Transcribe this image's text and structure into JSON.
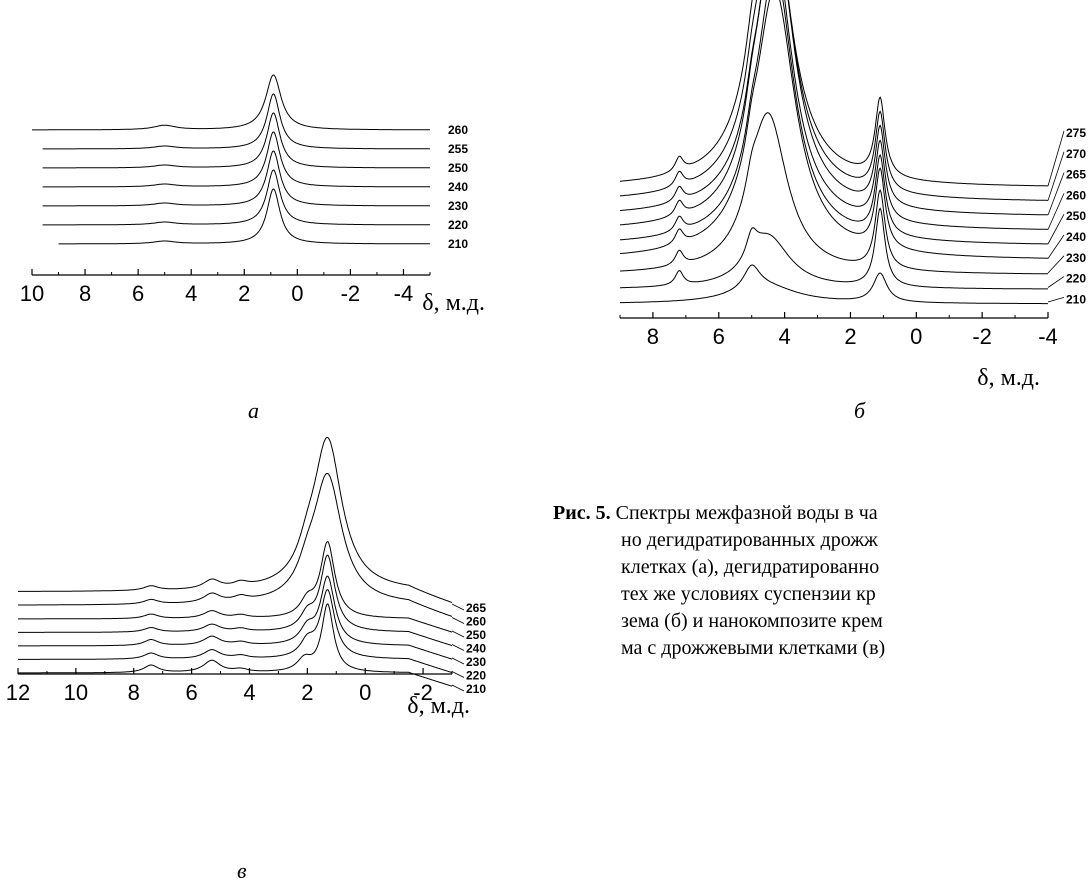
{
  "chart_data": [
    {
      "panel": "a",
      "type": "line",
      "panel_label": "а",
      "xlabel": "δ, м.д.",
      "xlim": [
        10,
        -5
      ],
      "xticks": [
        10,
        8,
        6,
        4,
        2,
        0,
        -2,
        -4
      ],
      "series": [
        {
          "name": "260",
          "peak": 0.9,
          "height": 1.0,
          "width": 0.35,
          "x_start": 10,
          "extras": [
            [
              5,
              0.08,
              0.5
            ]
          ]
        },
        {
          "name": "255",
          "peak": 0.9,
          "height": 1.0,
          "width": 0.3,
          "x_start": 9.6,
          "extras": [
            [
              5,
              0.05,
              0.5
            ]
          ]
        },
        {
          "name": "250",
          "peak": 0.9,
          "height": 1.0,
          "width": 0.3,
          "x_start": 9.6,
          "extras": [
            [
              5,
              0.05,
              0.5
            ]
          ]
        },
        {
          "name": "240",
          "peak": 0.9,
          "height": 1.0,
          "width": 0.3,
          "x_start": 9.6,
          "extras": [
            [
              5,
              0.05,
              0.5
            ]
          ]
        },
        {
          "name": "230",
          "peak": 0.9,
          "height": 1.0,
          "width": 0.3,
          "x_start": 9.6,
          "extras": [
            [
              5,
              0.05,
              0.5
            ]
          ]
        },
        {
          "name": "220",
          "peak": 0.9,
          "height": 1.0,
          "width": 0.3,
          "x_start": 9.6,
          "extras": [
            [
              5,
              0.05,
              0.5
            ]
          ]
        },
        {
          "name": "210",
          "peak": 0.9,
          "height": 1.0,
          "width": 0.3,
          "x_start": 9.0,
          "extras": [
            [
              5,
              0.05,
              0.5
            ]
          ]
        }
      ]
    },
    {
      "panel": "b",
      "type": "line",
      "panel_label": "б",
      "xlabel": "δ, м.д.",
      "xlim": [
        9,
        -4
      ],
      "xticks": [
        8,
        6,
        4,
        2,
        0,
        -2,
        -4
      ],
      "series": [
        {
          "name": "275",
          "peak": 4.4,
          "height": 1.0,
          "width": 0.7,
          "x_start": 9,
          "extras": [
            [
              7.2,
              0.05,
              0.15
            ],
            [
              5.0,
              0.06,
              0.2
            ],
            [
              1.1,
              0.27,
              0.18
            ]
          ]
        },
        {
          "name": "270",
          "peak": 4.35,
          "height": 1.0,
          "width": 0.7,
          "x_start": 9,
          "extras": [
            [
              7.2,
              0.05,
              0.15
            ],
            [
              5.0,
              0.06,
              0.2
            ],
            [
              1.1,
              0.27,
              0.18
            ]
          ]
        },
        {
          "name": "265",
          "peak": 4.3,
          "height": 1.0,
          "width": 0.7,
          "x_start": 9,
          "extras": [
            [
              7.2,
              0.05,
              0.15
            ],
            [
              5.0,
              0.06,
              0.2
            ],
            [
              1.1,
              0.27,
              0.18
            ]
          ]
        },
        {
          "name": "260",
          "peak": 4.35,
          "height": 1.0,
          "width": 0.7,
          "x_start": 9,
          "extras": [
            [
              7.2,
              0.05,
              0.15
            ],
            [
              5.0,
              0.06,
              0.2
            ],
            [
              1.1,
              0.27,
              0.18
            ]
          ]
        },
        {
          "name": "250",
          "peak": 4.3,
          "height": 0.95,
          "width": 0.7,
          "x_start": 9,
          "extras": [
            [
              7.2,
              0.05,
              0.15
            ],
            [
              5.0,
              0.06,
              0.2
            ],
            [
              1.1,
              0.27,
              0.18
            ]
          ]
        },
        {
          "name": "240",
          "peak": 4.3,
          "height": 0.93,
          "width": 0.75,
          "x_start": 9,
          "extras": [
            [
              7.2,
              0.05,
              0.15
            ],
            [
              5.0,
              0.06,
              0.2
            ],
            [
              1.1,
              0.27,
              0.18
            ]
          ]
        },
        {
          "name": "230",
          "peak": 4.5,
          "height": 0.55,
          "width": 0.7,
          "x_start": 9,
          "extras": [
            [
              7.2,
              0.05,
              0.15
            ],
            [
              5.0,
              0.06,
              0.2
            ],
            [
              1.1,
              0.27,
              0.18
            ]
          ]
        },
        {
          "name": "220",
          "peak": 4.5,
          "height": 0.18,
          "width": 0.8,
          "x_start": 9,
          "extras": [
            [
              7.2,
              0.05,
              0.15
            ],
            [
              5.0,
              0.08,
              0.2
            ],
            [
              1.1,
              0.27,
              0.18
            ]
          ]
        },
        {
          "name": "210",
          "peak": 4.6,
          "height": 0.06,
          "width": 1.2,
          "x_start": 9,
          "extras": [
            [
              5.0,
              0.08,
              0.3
            ],
            [
              1.1,
              0.1,
              0.25
            ]
          ]
        }
      ]
    },
    {
      "panel": "v",
      "type": "line",
      "panel_label": "в",
      "xlabel": "δ, м.д.",
      "xlim": [
        12,
        -3
      ],
      "xticks": [
        12,
        10,
        8,
        6,
        4,
        2,
        0,
        -2
      ],
      "series": [
        {
          "name": "265",
          "peak": 1.3,
          "height": 1.0,
          "width": 0.6,
          "x_start": 12,
          "extras": [
            [
              7.4,
              0.03,
              0.3
            ],
            [
              5.3,
              0.06,
              0.35
            ],
            [
              4.3,
              0.03,
              0.3
            ],
            [
              2.0,
              0.12,
              0.4
            ]
          ]
        },
        {
          "name": "260",
          "peak": 1.3,
          "height": 0.85,
          "width": 0.6,
          "x_start": 12,
          "extras": [
            [
              7.4,
              0.03,
              0.3
            ],
            [
              5.3,
              0.06,
              0.35
            ],
            [
              4.3,
              0.03,
              0.3
            ],
            [
              2.0,
              0.12,
              0.4
            ]
          ]
        },
        {
          "name": "250",
          "peak": 1.3,
          "height": 0.5,
          "width": 0.3,
          "x_start": 12,
          "extras": [
            [
              7.4,
              0.03,
              0.3
            ],
            [
              5.3,
              0.05,
              0.35
            ],
            [
              4.3,
              0.02,
              0.3
            ],
            [
              2.0,
              0.1,
              0.3
            ]
          ]
        },
        {
          "name": "240",
          "peak": 1.3,
          "height": 0.5,
          "width": 0.3,
          "x_start": 12,
          "extras": [
            [
              7.4,
              0.03,
              0.3
            ],
            [
              5.3,
              0.05,
              0.35
            ],
            [
              4.3,
              0.02,
              0.3
            ],
            [
              2.0,
              0.1,
              0.3
            ]
          ]
        },
        {
          "name": "230",
          "peak": 1.3,
          "height": 0.45,
          "width": 0.3,
          "x_start": 12,
          "extras": [
            [
              7.4,
              0.04,
              0.3
            ],
            [
              5.3,
              0.06,
              0.35
            ],
            [
              4.3,
              0.02,
              0.3
            ],
            [
              2.0,
              0.1,
              0.3
            ]
          ]
        },
        {
          "name": "220",
          "peak": 1.3,
          "height": 0.45,
          "width": 0.3,
          "x_start": 12,
          "extras": [
            [
              7.4,
              0.04,
              0.3
            ],
            [
              5.3,
              0.06,
              0.35
            ],
            [
              4.3,
              0.02,
              0.3
            ],
            [
              2.0,
              0.1,
              0.3
            ]
          ]
        },
        {
          "name": "210",
          "peak": 1.3,
          "height": 0.45,
          "width": 0.25,
          "x_start": 12,
          "extras": [
            [
              7.4,
              0.05,
              0.3
            ],
            [
              5.3,
              0.08,
              0.35
            ],
            [
              4.3,
              0.02,
              0.3
            ],
            [
              2.1,
              0.08,
              0.3
            ]
          ]
        }
      ]
    }
  ],
  "caption": {
    "fig": "Рис. 5.",
    "lines": [
      "Спектры межфазной воды в ча",
      "но дегидратированных дрожж",
      "клетках (а), дегидратированно",
      "тех же условиях суспензии кр",
      "зема (б) и нанокомпозите крем",
      "ма с дрожжевыми клетками (в)"
    ]
  }
}
